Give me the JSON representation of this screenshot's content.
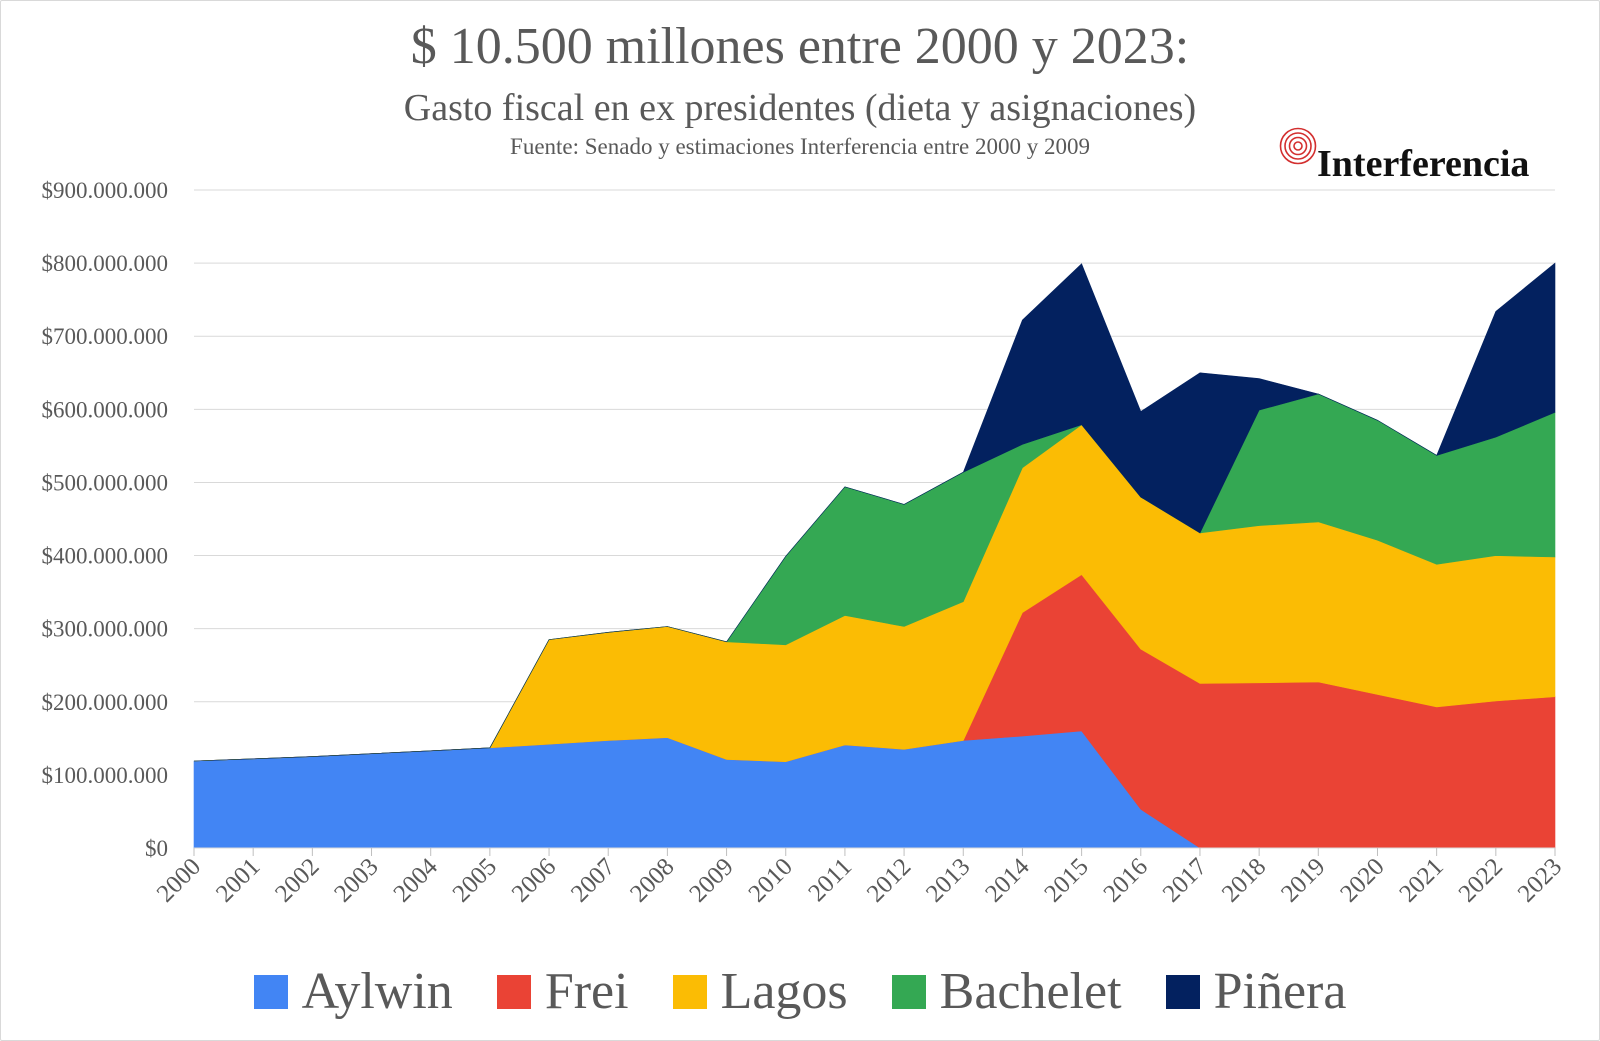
{
  "header": {
    "title": "$ 10.500 millones entre 2000 y 2023:",
    "subtitle": "Gasto fiscal en ex presidentes (dieta y asignaciones)",
    "source": "Fuente: Senado y estimaciones Interferencia entre 2000 y 2009"
  },
  "logo": {
    "text": "Interferencia",
    "color": "#d32f2f"
  },
  "chart_data": {
    "type": "area",
    "stacked": true,
    "x": [
      2000,
      2001,
      2002,
      2003,
      2004,
      2005,
      2006,
      2007,
      2008,
      2009,
      2010,
      2011,
      2012,
      2013,
      2014,
      2015,
      2016,
      2017,
      2018,
      2019,
      2020,
      2021,
      2022,
      2023
    ],
    "series": [
      {
        "name": "Aylwin",
        "color": "#4285f4",
        "values": [
          119000000,
          122000000,
          125000000,
          129000000,
          133000000,
          137000000,
          142000000,
          147000000,
          151000000,
          121000000,
          118000000,
          141000000,
          135000000,
          147000000,
          153000000,
          160000000,
          53000000,
          0,
          0,
          0,
          0,
          0,
          0,
          0
        ]
      },
      {
        "name": "Frei",
        "color": "#ea4335",
        "values": [
          0,
          0,
          0,
          0,
          0,
          0,
          0,
          0,
          0,
          0,
          0,
          0,
          0,
          0,
          169000000,
          214000000,
          219000000,
          225000000,
          226000000,
          227000000,
          210000000,
          193000000,
          201000000,
          207000000
        ]
      },
      {
        "name": "Lagos",
        "color": "#fbbc04",
        "values": [
          0,
          0,
          0,
          0,
          0,
          0,
          143000000,
          148000000,
          152000000,
          161000000,
          160000000,
          177000000,
          168000000,
          190000000,
          198000000,
          205000000,
          208000000,
          206000000,
          215000000,
          219000000,
          211000000,
          195000000,
          199000000,
          191000000
        ]
      },
      {
        "name": "Bachelet",
        "color": "#34a853",
        "values": [
          0,
          0,
          0,
          0,
          0,
          0,
          0,
          0,
          0,
          0,
          121000000,
          176000000,
          167000000,
          177000000,
          32000000,
          0,
          0,
          0,
          158000000,
          175000000,
          164000000,
          149000000,
          162000000,
          198000000
        ]
      },
      {
        "name": "Piñera",
        "color": "#03215f",
        "values": [
          0,
          0,
          0,
          0,
          0,
          0,
          0,
          0,
          0,
          0,
          0,
          0,
          0,
          0,
          170000000,
          220000000,
          117000000,
          219000000,
          43000000,
          0,
          0,
          0,
          172000000,
          204000000
        ]
      }
    ],
    "y_ticks": [
      "$0",
      "$100.000.000",
      "$200.000.000",
      "$300.000.000",
      "$400.000.000",
      "$500.000.000",
      "$600.000.000",
      "$700.000.000",
      "$800.000.000",
      "$900.000.000"
    ],
    "ylim": [
      0,
      900000000
    ],
    "grid": true,
    "legend": "bottom"
  }
}
